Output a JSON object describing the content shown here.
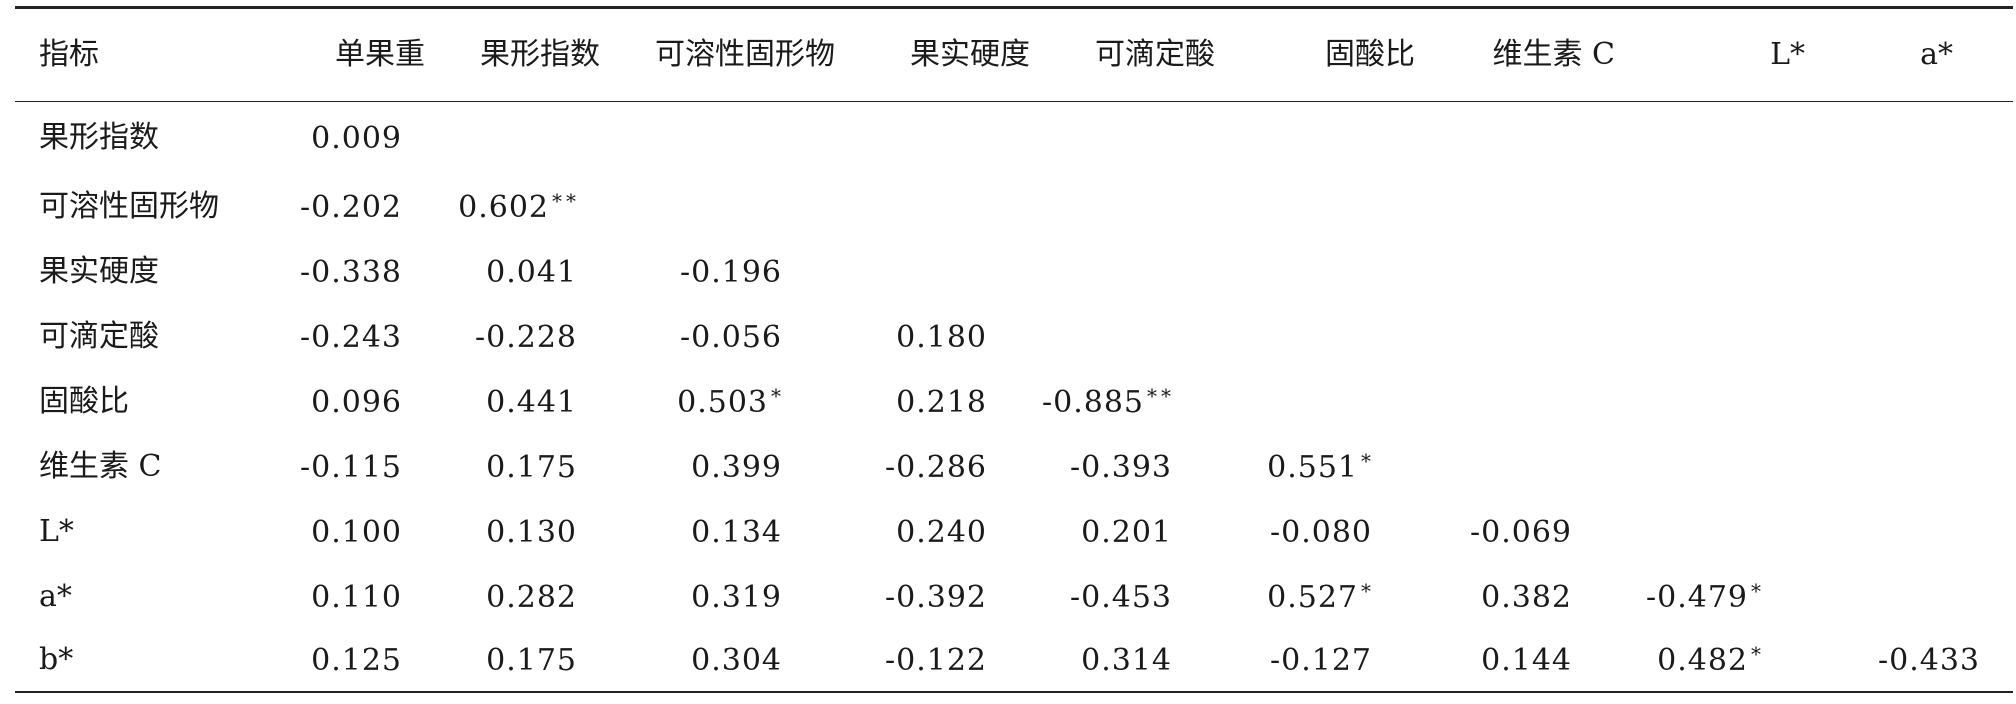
{
  "table": {
    "headers": [
      "指标",
      "单果重",
      "果形指数",
      "可溶性固形物",
      "果实硬度",
      "可滴定酸",
      "固酸比",
      "维生素 C",
      "L*",
      "a*"
    ],
    "rows": [
      {
        "label": "果形指数",
        "cells": [
          {
            "v": "0.009",
            "s": ""
          },
          {
            "v": "",
            "s": ""
          },
          {
            "v": "",
            "s": ""
          },
          {
            "v": "",
            "s": ""
          },
          {
            "v": "",
            "s": ""
          },
          {
            "v": "",
            "s": ""
          },
          {
            "v": "",
            "s": ""
          },
          {
            "v": "",
            "s": ""
          },
          {
            "v": "",
            "s": ""
          }
        ]
      },
      {
        "label": "可溶性固形物",
        "cells": [
          {
            "v": "-0.202",
            "s": ""
          },
          {
            "v": "0.602",
            "s": "**"
          },
          {
            "v": "",
            "s": ""
          },
          {
            "v": "",
            "s": ""
          },
          {
            "v": "",
            "s": ""
          },
          {
            "v": "",
            "s": ""
          },
          {
            "v": "",
            "s": ""
          },
          {
            "v": "",
            "s": ""
          },
          {
            "v": "",
            "s": ""
          }
        ]
      },
      {
        "label": "果实硬度",
        "cells": [
          {
            "v": "-0.338",
            "s": ""
          },
          {
            "v": "0.041",
            "s": ""
          },
          {
            "v": "-0.196",
            "s": ""
          },
          {
            "v": "",
            "s": ""
          },
          {
            "v": "",
            "s": ""
          },
          {
            "v": "",
            "s": ""
          },
          {
            "v": "",
            "s": ""
          },
          {
            "v": "",
            "s": ""
          },
          {
            "v": "",
            "s": ""
          }
        ]
      },
      {
        "label": "可滴定酸",
        "cells": [
          {
            "v": "-0.243",
            "s": ""
          },
          {
            "v": "-0.228",
            "s": ""
          },
          {
            "v": "-0.056",
            "s": ""
          },
          {
            "v": "0.180",
            "s": ""
          },
          {
            "v": "",
            "s": ""
          },
          {
            "v": "",
            "s": ""
          },
          {
            "v": "",
            "s": ""
          },
          {
            "v": "",
            "s": ""
          },
          {
            "v": "",
            "s": ""
          }
        ]
      },
      {
        "label": "固酸比",
        "cells": [
          {
            "v": "0.096",
            "s": ""
          },
          {
            "v": "0.441",
            "s": ""
          },
          {
            "v": "0.503",
            "s": "*"
          },
          {
            "v": "0.218",
            "s": ""
          },
          {
            "v": "-0.885",
            "s": "**"
          },
          {
            "v": "",
            "s": ""
          },
          {
            "v": "",
            "s": ""
          },
          {
            "v": "",
            "s": ""
          },
          {
            "v": "",
            "s": ""
          }
        ]
      },
      {
        "label": "维生素 C",
        "cells": [
          {
            "v": "-0.115",
            "s": ""
          },
          {
            "v": "0.175",
            "s": ""
          },
          {
            "v": "0.399",
            "s": ""
          },
          {
            "v": "-0.286",
            "s": ""
          },
          {
            "v": "-0.393",
            "s": ""
          },
          {
            "v": "0.551",
            "s": "*"
          },
          {
            "v": "",
            "s": ""
          },
          {
            "v": "",
            "s": ""
          },
          {
            "v": "",
            "s": ""
          }
        ]
      },
      {
        "label": "L*",
        "cells": [
          {
            "v": "0.100",
            "s": ""
          },
          {
            "v": "0.130",
            "s": ""
          },
          {
            "v": "0.134",
            "s": ""
          },
          {
            "v": "0.240",
            "s": ""
          },
          {
            "v": "0.201",
            "s": ""
          },
          {
            "v": "-0.080",
            "s": ""
          },
          {
            "v": "-0.069",
            "s": ""
          },
          {
            "v": "",
            "s": ""
          },
          {
            "v": "",
            "s": ""
          }
        ]
      },
      {
        "label": "a*",
        "cells": [
          {
            "v": "0.110",
            "s": ""
          },
          {
            "v": "0.282",
            "s": ""
          },
          {
            "v": "0.319",
            "s": ""
          },
          {
            "v": "-0.392",
            "s": ""
          },
          {
            "v": "-0.453",
            "s": ""
          },
          {
            "v": "0.527",
            "s": "*"
          },
          {
            "v": "0.382",
            "s": ""
          },
          {
            "v": "-0.479",
            "s": "*"
          },
          {
            "v": "",
            "s": ""
          }
        ]
      },
      {
        "label": "b*",
        "cells": [
          {
            "v": "0.125",
            "s": ""
          },
          {
            "v": "0.175",
            "s": ""
          },
          {
            "v": "0.304",
            "s": ""
          },
          {
            "v": "-0.122",
            "s": ""
          },
          {
            "v": "0.314",
            "s": ""
          },
          {
            "v": "-0.127",
            "s": ""
          },
          {
            "v": "0.144",
            "s": ""
          },
          {
            "v": "0.482",
            "s": "*"
          },
          {
            "v": "-0.433",
            "s": ""
          }
        ]
      }
    ]
  }
}
